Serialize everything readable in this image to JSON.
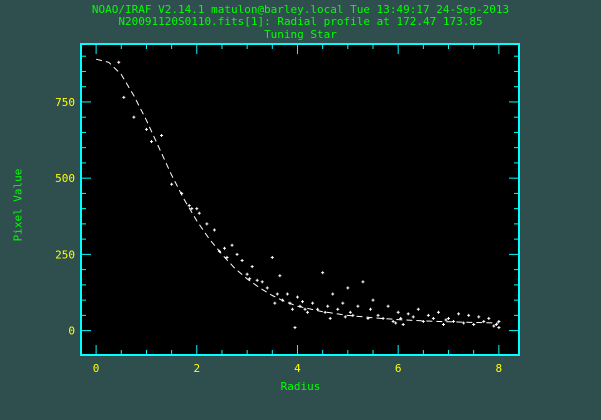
{
  "header": {
    "line1": "NOAO/IRAF V2.14.1 matulon@barley.local Tue 13:49:17 24-Sep-2013",
    "line2": "N20091120S0110.fits[1]: Radial profile at 172.47 173.85",
    "line3": "Tuning Star"
  },
  "colors": {
    "background": "#2f4f4f",
    "plot_bg": "#000000",
    "axis": "#00ffff",
    "ticks": "#ffff00",
    "labels": "#00ff00",
    "data": "#ffffff"
  },
  "chart_data": {
    "type": "scatter",
    "title": "Tuning Star",
    "xlabel": "Radius",
    "ylabel": "Pixel Value",
    "xlim": [
      -0.3,
      8.4
    ],
    "ylim": [
      -80,
      940
    ],
    "x_ticks": [
      0,
      2,
      4,
      6,
      8
    ],
    "y_ticks": [
      0,
      250,
      500,
      750
    ],
    "grid": false,
    "fit_curve": {
      "style": "dashed",
      "x": [
        0,
        0.25,
        0.5,
        0.75,
        1.0,
        1.25,
        1.5,
        1.75,
        2.0,
        2.25,
        2.5,
        2.75,
        3.0,
        3.25,
        3.5,
        3.75,
        4.0,
        4.5,
        5.0,
        5.5,
        6.0,
        6.5,
        7.0,
        7.5,
        8.0
      ],
      "y": [
        890,
        880,
        840,
        770,
        690,
        600,
        510,
        430,
        360,
        300,
        250,
        205,
        170,
        140,
        115,
        95,
        80,
        62,
        50,
        42,
        36,
        32,
        29,
        27,
        25
      ]
    },
    "points": {
      "x": [
        0.45,
        0.55,
        0.75,
        1.0,
        1.1,
        1.3,
        1.5,
        1.7,
        1.85,
        1.9,
        2.0,
        2.05,
        2.2,
        2.35,
        2.45,
        2.55,
        2.6,
        2.7,
        2.8,
        2.9,
        3.0,
        3.05,
        3.1,
        3.2,
        3.3,
        3.4,
        3.5,
        3.55,
        3.6,
        3.65,
        3.7,
        3.8,
        3.85,
        3.9,
        4.0,
        4.05,
        4.1,
        4.15,
        4.2,
        4.3,
        4.4,
        4.5,
        4.55,
        4.6,
        4.65,
        4.7,
        4.8,
        4.9,
        5.0,
        5.05,
        5.1,
        5.2,
        5.3,
        5.4,
        5.45,
        5.5,
        5.6,
        5.7,
        5.8,
        5.9,
        6.0,
        6.05,
        6.1,
        6.2,
        6.3,
        6.4,
        6.5,
        6.6,
        6.7,
        6.8,
        6.9,
        7.0,
        7.1,
        7.2,
        7.3,
        7.4,
        7.5,
        7.6,
        7.7,
        7.8,
        7.9,
        8.0,
        8.0,
        7.95,
        6.95,
        5.95,
        4.95,
        3.95
      ],
      "y": [
        880,
        765,
        700,
        660,
        620,
        640,
        480,
        450,
        410,
        400,
        400,
        385,
        350,
        330,
        260,
        270,
        240,
        280,
        250,
        230,
        185,
        170,
        210,
        165,
        160,
        140,
        240,
        90,
        120,
        180,
        100,
        120,
        90,
        70,
        110,
        80,
        95,
        70,
        60,
        90,
        70,
        190,
        60,
        80,
        40,
        120,
        70,
        90,
        140,
        60,
        50,
        80,
        160,
        40,
        70,
        100,
        50,
        40,
        80,
        30,
        60,
        40,
        20,
        55,
        45,
        70,
        30,
        50,
        40,
        60,
        20,
        40,
        30,
        55,
        25,
        50,
        20,
        45,
        30,
        40,
        15,
        30,
        10,
        20,
        35,
        25,
        45,
        10
      ]
    }
  }
}
